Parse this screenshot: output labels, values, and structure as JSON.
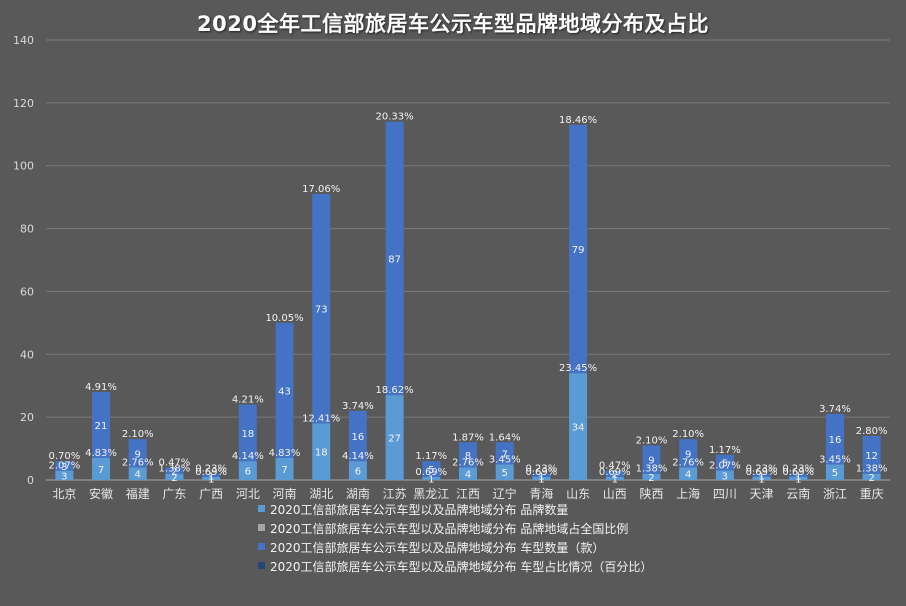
{
  "chart_data": {
    "type": "bar",
    "stacked": true,
    "title": "2020全年工信部旅居车公示车型品牌地域分布及占比",
    "ylim": [
      0,
      140
    ],
    "yticks": [
      0,
      20,
      40,
      60,
      80,
      100,
      120,
      140
    ],
    "categories": [
      "北京",
      "安徽",
      "福建",
      "广东",
      "广西",
      "河北",
      "河南",
      "湖北",
      "湖南",
      "江苏",
      "黑龙江",
      "江西",
      "辽宁",
      "青海",
      "山东",
      "山西",
      "陕西",
      "上海",
      "四川",
      "天津",
      "云南",
      "浙江",
      "重庆"
    ],
    "series": [
      {
        "name": "2020工信部旅居车公示车型以及品牌地域分布 品牌数量",
        "color": "#5b9bd5",
        "values": [
          3,
          7,
          4,
          2,
          1,
          6,
          7,
          18,
          6,
          27,
          1,
          4,
          5,
          1,
          34,
          1,
          2,
          4,
          3,
          1,
          1,
          5,
          2
        ]
      },
      {
        "name": "2020工信部旅居车公示车型以及品牌地域分布 品牌地域占全国比例",
        "color": "#a5a5a5",
        "values": [
          "2.07%",
          "4.83%",
          "2.76%",
          "1.38%",
          "0.69%",
          "4.14%",
          "4.83%",
          "12.41%",
          "4.14%",
          "18.62%",
          "0.69%",
          "2.76%",
          "3.45%",
          "0.69%",
          "23.45%",
          "0.69%",
          "1.38%",
          "2.76%",
          "2.07%",
          "0.69%",
          "0.69%",
          "3.45%",
          "1.38%"
        ]
      },
      {
        "name": "2020工信部旅居车公示车型以及品牌地域分布 车型数量（款）",
        "color": "#4472c4",
        "values": [
          3,
          21,
          9,
          2,
          1,
          18,
          43,
          73,
          16,
          87,
          5,
          8,
          7,
          1,
          79,
          2,
          9,
          9,
          5,
          1,
          1,
          16,
          12
        ]
      },
      {
        "name": "2020工信部旅居车公示车型以及品牌地域分布 车型占比情况（百分比）",
        "color": "#264478",
        "values": [
          "0.70%",
          "4.91%",
          "2.10%",
          "0.47%",
          "0.23%",
          "4.21%",
          "10.05%",
          "17.06%",
          "3.74%",
          "20.33%",
          "1.17%",
          "1.87%",
          "1.64%",
          "0.23%",
          "18.46%",
          "0.47%",
          "2.10%",
          "2.10%",
          "1.17%",
          "0.23%",
          "0.23%",
          "3.74%",
          "2.80%"
        ]
      }
    ],
    "grid": true,
    "legend_position": "bottom"
  }
}
